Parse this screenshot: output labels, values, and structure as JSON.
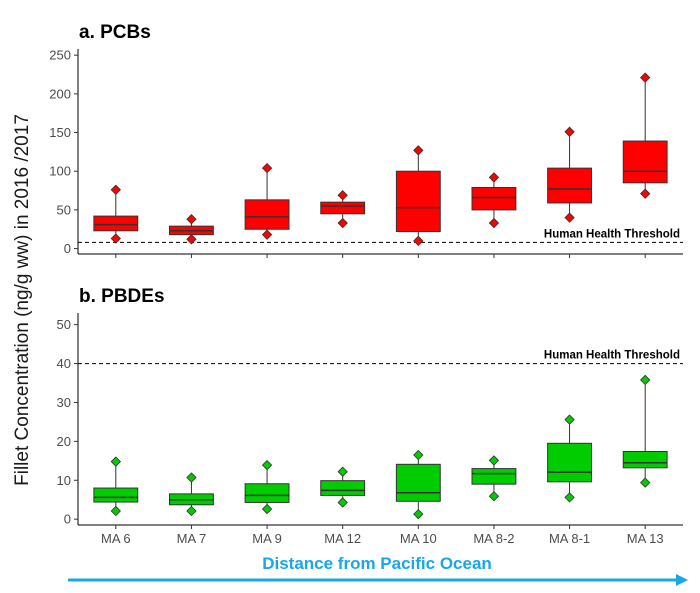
{
  "y_axis_title": "Fillet Concentration (ng/g ww) in 2016 /2017",
  "x_axis_title": "Distance from Pacific Ocean",
  "colors": {
    "pcb": "#ff0000",
    "pbde": "#00cc00",
    "arrow": "#1aa7e6"
  },
  "chart_data": [
    {
      "type": "box",
      "title": "a. PCBs",
      "categories": [
        "MA 6",
        "MA 7",
        "MA 9",
        "MA 12",
        "MA 10",
        "MA 8-2",
        "MA 8-1",
        "MA 13"
      ],
      "ylim": [
        -7,
        258
      ],
      "yticks": [
        0,
        50,
        100,
        150,
        200,
        250
      ],
      "threshold": {
        "value": 8,
        "label": "Human Health Threshold"
      },
      "boxes": [
        {
          "q1": 23,
          "median": 31,
          "q3": 42,
          "whisker_low": 13,
          "whisker_high": 76,
          "min": 13,
          "max": 76
        },
        {
          "q1": 18,
          "median": 23,
          "q3": 29,
          "whisker_low": 12,
          "whisker_high": 38,
          "min": 12,
          "max": 38
        },
        {
          "q1": 25,
          "median": 41,
          "q3": 63,
          "whisker_low": 18,
          "whisker_high": 104,
          "min": 18,
          "max": 104
        },
        {
          "q1": 45,
          "median": 55,
          "q3": 60,
          "whisker_low": 33,
          "whisker_high": 69,
          "min": 33,
          "max": 69
        },
        {
          "q1": 22,
          "median": 53,
          "q3": 100,
          "whisker_low": 10,
          "whisker_high": 127,
          "min": 10,
          "max": 127
        },
        {
          "q1": 50,
          "median": 66,
          "q3": 79,
          "whisker_low": 33,
          "whisker_high": 92,
          "min": 33,
          "max": 92
        },
        {
          "q1": 59,
          "median": 77,
          "q3": 104,
          "whisker_low": 40,
          "whisker_high": 151,
          "min": 40,
          "max": 151
        },
        {
          "q1": 85,
          "median": 100,
          "q3": 139,
          "whisker_low": 71,
          "whisker_high": 221,
          "min": 71,
          "max": 221
        }
      ]
    },
    {
      "type": "box",
      "title": "b. PBDEs",
      "categories": [
        "MA 6",
        "MA 7",
        "MA 9",
        "MA 12",
        "MA 10",
        "MA 8-2",
        "MA 8-1",
        "MA 13"
      ],
      "ylim": [
        -1.5,
        53
      ],
      "yticks": [
        0,
        10,
        20,
        30,
        40,
        50
      ],
      "threshold": {
        "value": 40,
        "label": "Human Health Threshold"
      },
      "boxes": [
        {
          "q1": 4.4,
          "median": 5.6,
          "q3": 8.0,
          "whisker_low": 2.1,
          "whisker_high": 14.8,
          "min": 2.1,
          "max": 14.8
        },
        {
          "q1": 3.7,
          "median": 5.0,
          "q3": 6.5,
          "whisker_low": 2.1,
          "whisker_high": 10.7,
          "min": 2.1,
          "max": 10.7
        },
        {
          "q1": 4.3,
          "median": 6.1,
          "q3": 9.1,
          "whisker_low": 2.6,
          "whisker_high": 13.9,
          "min": 2.6,
          "max": 13.9
        },
        {
          "q1": 6.1,
          "median": 7.4,
          "q3": 9.9,
          "whisker_low": 4.3,
          "whisker_high": 12.2,
          "min": 4.3,
          "max": 12.2
        },
        {
          "q1": 4.6,
          "median": 6.8,
          "q3": 14.1,
          "whisker_low": 1.3,
          "whisker_high": 16.5,
          "min": 1.3,
          "max": 16.5
        },
        {
          "q1": 9.0,
          "median": 11.7,
          "q3": 13.0,
          "whisker_low": 5.9,
          "whisker_high": 15.1,
          "min": 5.9,
          "max": 15.1
        },
        {
          "q1": 9.6,
          "median": 12.1,
          "q3": 19.5,
          "whisker_low": 5.6,
          "whisker_high": 25.6,
          "min": 5.6,
          "max": 25.6
        },
        {
          "q1": 13.2,
          "median": 14.5,
          "q3": 17.4,
          "whisker_low": 9.4,
          "whisker_high": 35.8,
          "min": 9.4,
          "max": 35.8
        }
      ]
    }
  ]
}
